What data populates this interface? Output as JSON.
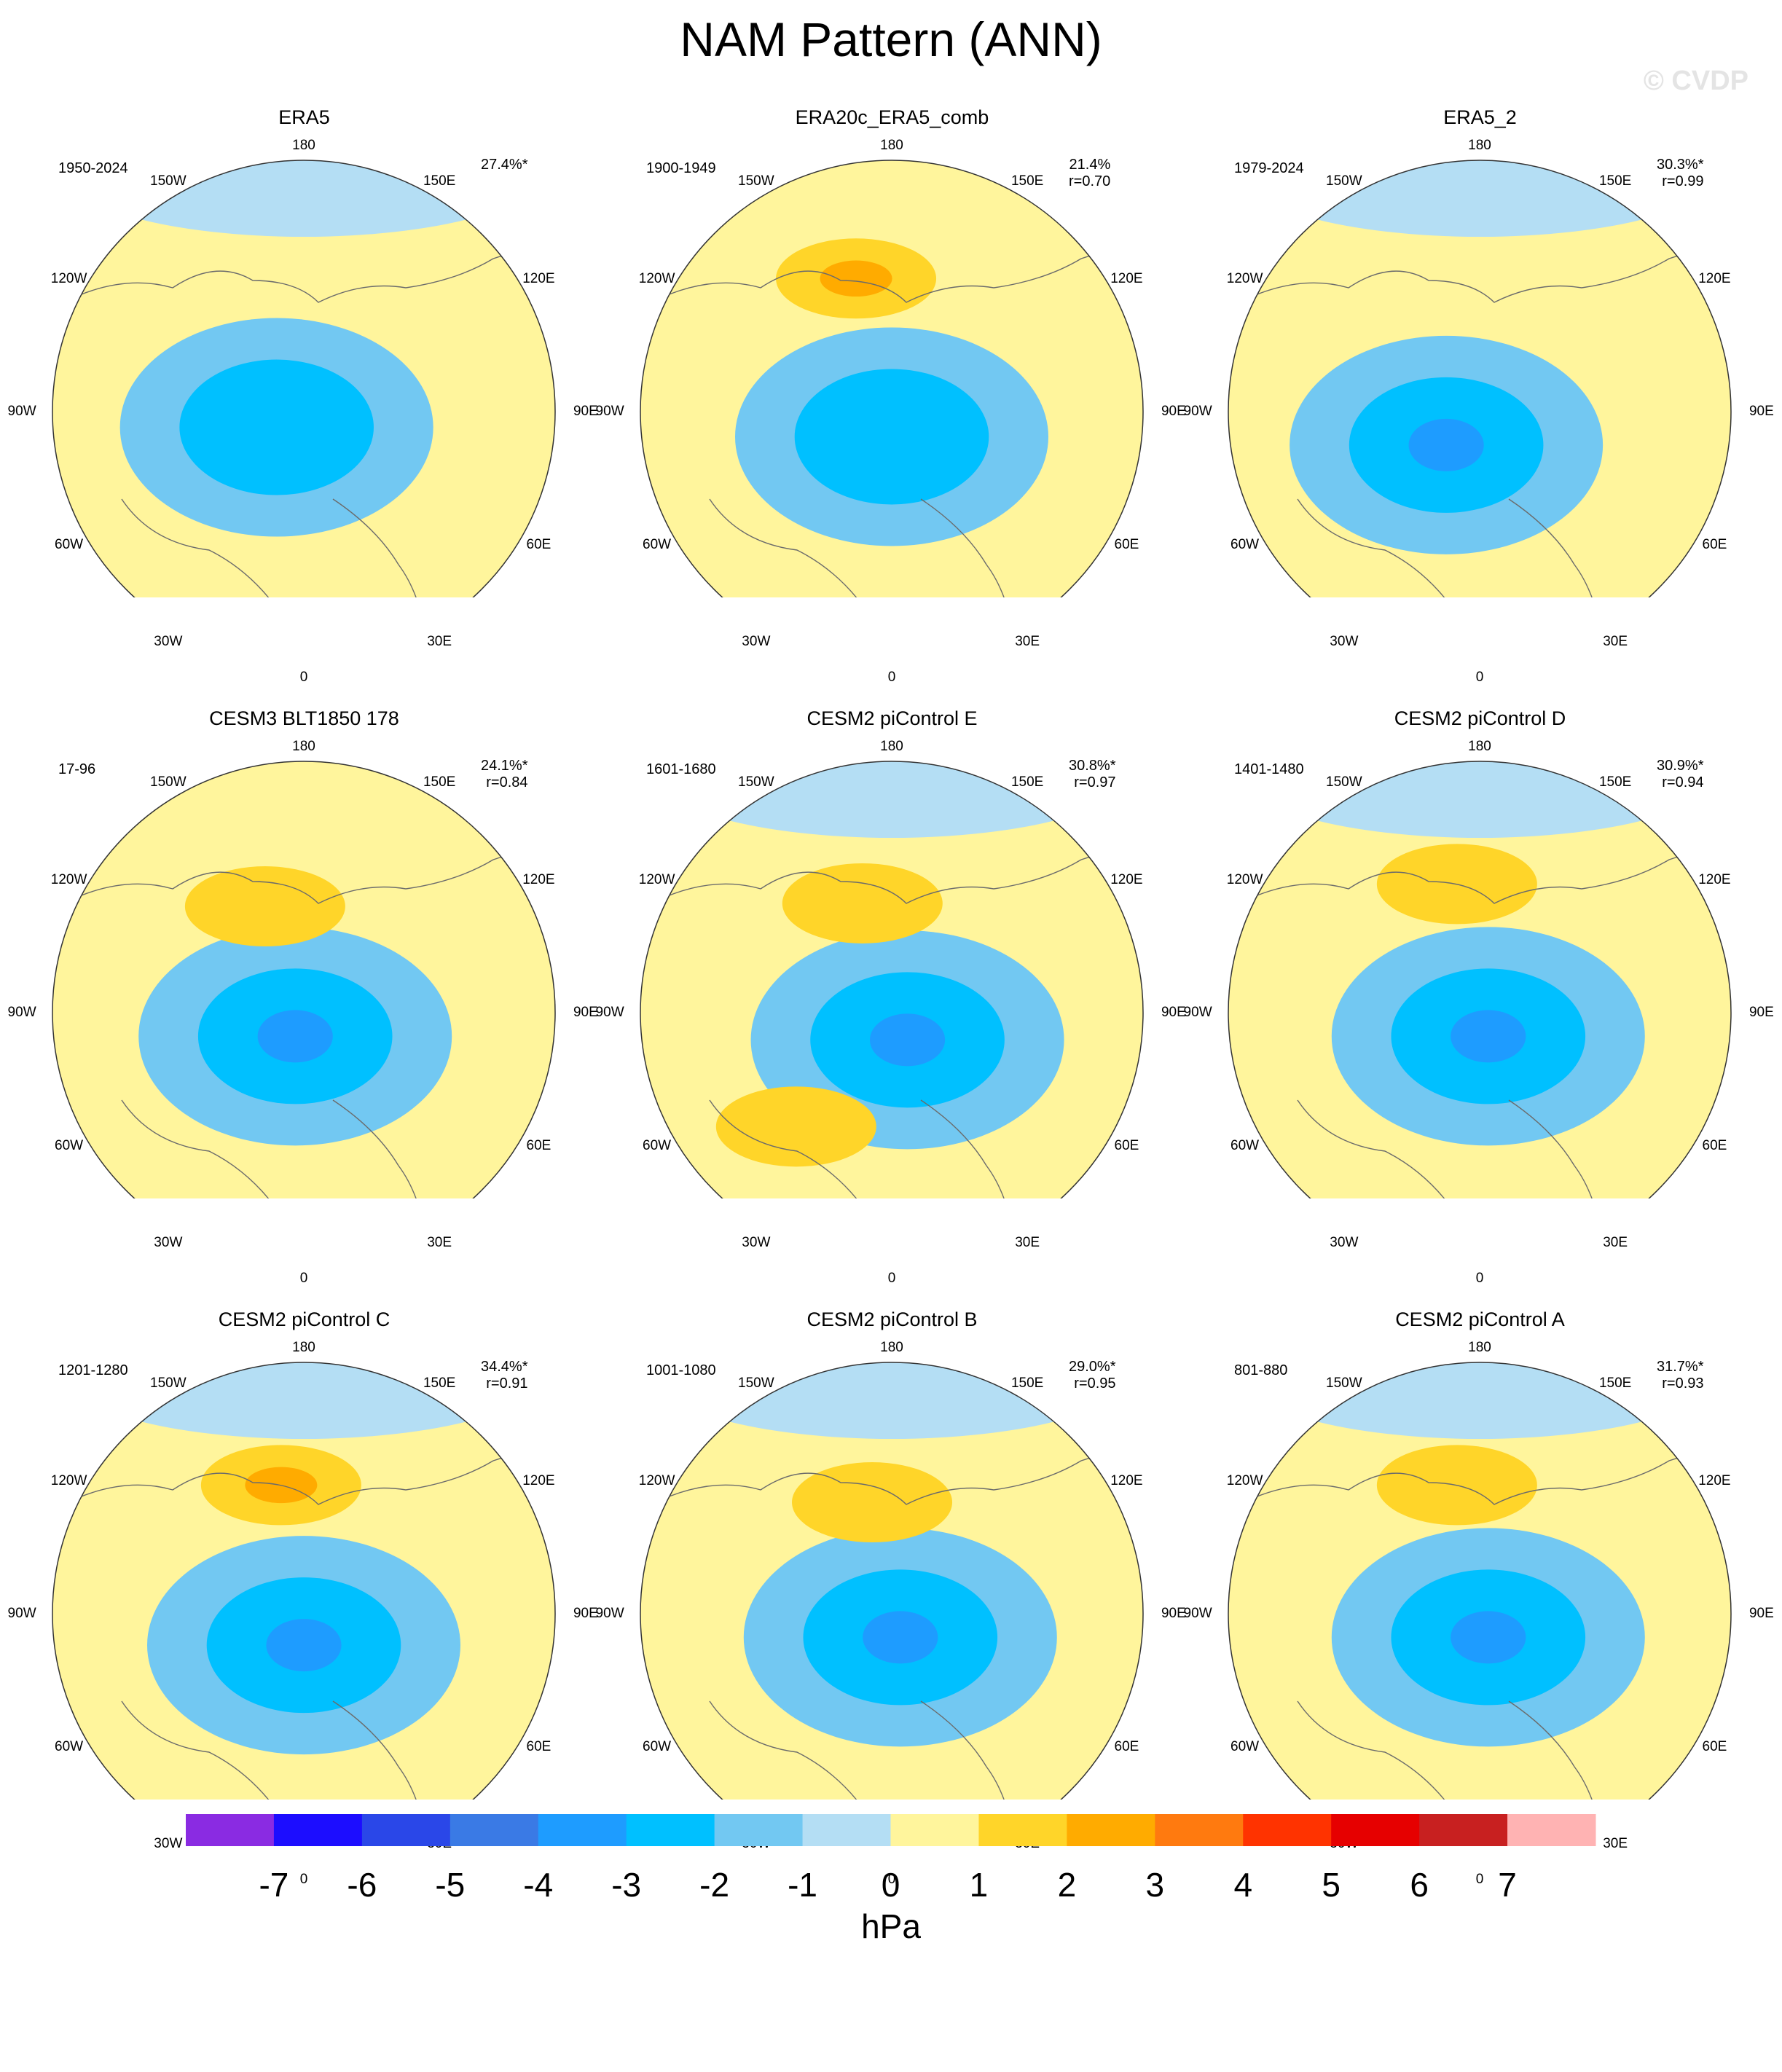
{
  "title": "NAM Pattern (ANN)",
  "watermark": "© CVDP",
  "lon_labels": [
    "180",
    "150E",
    "120E",
    "90E",
    "60E",
    "30E",
    "0",
    "30W",
    "60W",
    "90W",
    "120W",
    "150W"
  ],
  "colorbar": {
    "label": "hPa",
    "ticks": [
      "-7",
      "-6",
      "-5",
      "-4",
      "-3",
      "-2",
      "-1",
      "0",
      "1",
      "2",
      "3",
      "4",
      "5",
      "6",
      "7"
    ],
    "colors": [
      "#8a2be2",
      "#1c0dff",
      "#2a47e8",
      "#3a7ae5",
      "#1e9cff",
      "#00c0ff",
      "#72c8f2",
      "#b4def4",
      "#fff59c",
      "#ffd529",
      "#ffab00",
      "#ff7a0f",
      "#ff3300",
      "#e60000",
      "#c82020",
      "#ffb3b3"
    ]
  },
  "chart_data": [
    {
      "type": "heatmap",
      "title": "ERA5",
      "period": "1950-2024",
      "explained_variance": "27.4%*",
      "pattern_correlation": "",
      "anomalies": [
        {
          "sign": "negative",
          "level": -2,
          "approx_lat": 80,
          "approx_lon": -60
        },
        {
          "sign": "positive",
          "level": 0,
          "approx_lat": 45,
          "approx_lon": -30
        }
      ]
    },
    {
      "type": "heatmap",
      "title": "ERA20c_ERA5_comb",
      "period": "1900-1949",
      "explained_variance": "21.4%",
      "pattern_correlation": "r=0.70",
      "anomalies": [
        {
          "sign": "negative",
          "level": -2,
          "approx_lat": 82,
          "approx_lon": 0
        },
        {
          "sign": "positive",
          "level": 2,
          "approx_lat": 48,
          "approx_lon": -165
        }
      ]
    },
    {
      "type": "heatmap",
      "title": "ERA5_2",
      "period": "1979-2024",
      "explained_variance": "30.3%*",
      "pattern_correlation": "r=0.99",
      "anomalies": [
        {
          "sign": "negative",
          "level": -3,
          "approx_lat": 75,
          "approx_lon": -45
        },
        {
          "sign": "positive",
          "level": 0,
          "approx_lat": 40,
          "approx_lon": -30
        }
      ]
    },
    {
      "type": "heatmap",
      "title": "CESM3 BLT1850 178",
      "period": "17-96",
      "explained_variance": "24.1%*",
      "pattern_correlation": "r=0.84",
      "anomalies": [
        {
          "sign": "negative",
          "level": -3,
          "approx_lat": 82,
          "approx_lon": -20
        },
        {
          "sign": "positive",
          "level": 1,
          "approx_lat": 55,
          "approx_lon": -160
        }
      ]
    },
    {
      "type": "heatmap",
      "title": "CESM2 piControl E",
      "period": "1601-1680",
      "explained_variance": "30.8%*",
      "pattern_correlation": "r=0.97",
      "anomalies": [
        {
          "sign": "negative",
          "level": -3,
          "approx_lat": 80,
          "approx_lon": 30
        },
        {
          "sign": "positive",
          "level": 1,
          "approx_lat": 55,
          "approx_lon": -165
        },
        {
          "sign": "positive",
          "level": 1,
          "approx_lat": 45,
          "approx_lon": -40
        }
      ]
    },
    {
      "type": "heatmap",
      "title": "CESM2 piControl D",
      "period": "1401-1480",
      "explained_variance": "30.9%*",
      "pattern_correlation": "r=0.94",
      "anomalies": [
        {
          "sign": "negative",
          "level": -3,
          "approx_lat": 82,
          "approx_lon": 20
        },
        {
          "sign": "positive",
          "level": 1,
          "approx_lat": 50,
          "approx_lon": -170
        }
      ]
    },
    {
      "type": "heatmap",
      "title": "CESM2 piControl C",
      "period": "1201-1280",
      "explained_variance": "34.4%*",
      "pattern_correlation": "r=0.91",
      "anomalies": [
        {
          "sign": "negative",
          "level": -3,
          "approx_lat": 80,
          "approx_lon": 0
        },
        {
          "sign": "positive",
          "level": 2,
          "approx_lat": 50,
          "approx_lon": -170
        }
      ]
    },
    {
      "type": "heatmap",
      "title": "CESM2 piControl B",
      "period": "1001-1080",
      "explained_variance": "29.0%*",
      "pattern_correlation": "r=0.95",
      "anomalies": [
        {
          "sign": "negative",
          "level": -3,
          "approx_lat": 82,
          "approx_lon": 20
        },
        {
          "sign": "positive",
          "level": 1,
          "approx_lat": 55,
          "approx_lon": -170
        }
      ]
    },
    {
      "type": "heatmap",
      "title": "CESM2 piControl A",
      "period": "801-880",
      "explained_variance": "31.7%*",
      "pattern_correlation": "r=0.93",
      "anomalies": [
        {
          "sign": "negative",
          "level": -3,
          "approx_lat": 82,
          "approx_lon": 20
        },
        {
          "sign": "positive",
          "level": 1,
          "approx_lat": 50,
          "approx_lon": -170
        }
      ]
    }
  ]
}
